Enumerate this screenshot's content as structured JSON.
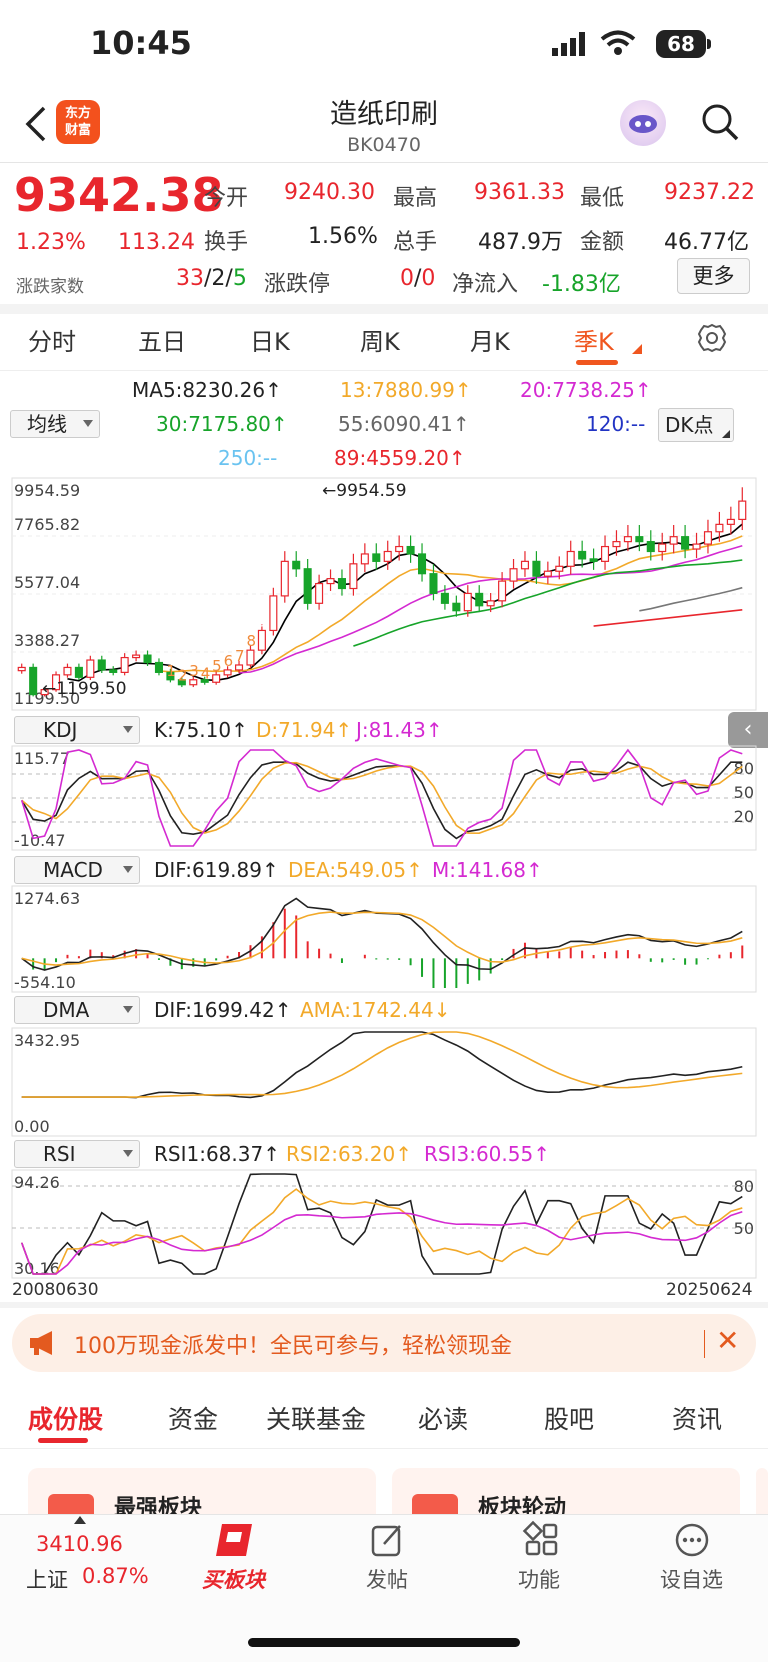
{
  "status": {
    "time": "10:45",
    "battery": "68"
  },
  "header": {
    "logo_text": "东方\n财富",
    "title": "造纸印刷",
    "code": "BK0470"
  },
  "quote": {
    "price": "9342.38",
    "change_pct": "1.23%",
    "change": "113.24",
    "open_label": "今开",
    "open": "9240.30",
    "high_label": "最高",
    "high": "9361.33",
    "low_label": "最低",
    "low": "9237.22",
    "turnover_label": "换手",
    "turnover": "1.56%",
    "volume_label": "总手",
    "volume": "487.9万",
    "amount_label": "金额",
    "amount": "46.77亿",
    "breadth_label": "涨跌家数",
    "breadth_up": "33",
    "breadth_sep1": "/",
    "breadth_flat": "2",
    "breadth_sep2": "/",
    "breadth_down": "5",
    "limit_label": "涨跌停",
    "limit_up": "0",
    "limit_sep": "/",
    "limit_down": "0",
    "netflow_label": "净流入",
    "netflow": "-1.83亿",
    "more": "更多"
  },
  "period_tabs": [
    "分时",
    "五日",
    "日K",
    "周K",
    "月K",
    "季K"
  ],
  "ma": {
    "select": "均线",
    "ma5": "MA5:8230.26↑",
    "ma13": "13:7880.99↑",
    "ma20": "20:7738.25↑",
    "ma30": "30:7175.80↑",
    "ma55": "55:6090.41↑",
    "ma120": "120:--",
    "ma250": "250:--",
    "ma89": "89:4559.20↑",
    "dk": "DK点"
  },
  "chart_data": {
    "type": "candlestick",
    "period": "quarterly",
    "x_start": "20080630",
    "x_end": "20250624",
    "y_ticks": [
      "9954.59",
      "7765.82",
      "5577.04",
      "3388.27",
      "1199.50"
    ],
    "ylim": [
      1199.5,
      9954.59
    ],
    "max_label": "9954.59",
    "min_label": "1199.50",
    "seq_labels": [
      "1",
      "2",
      "3",
      "4",
      "5",
      "6",
      "7",
      "8",
      "9"
    ],
    "close": [
      2600,
      1500,
      1700,
      2300,
      2600,
      2200,
      2900,
      2500,
      2400,
      3000,
      3100,
      2800,
      2400,
      2100,
      1900,
      2100,
      2000,
      2300,
      2500,
      2700,
      3300,
      4100,
      5500,
      6900,
      6600,
      5200,
      6000,
      6200,
      5800,
      6800,
      7200,
      6900,
      7300,
      7500,
      7200,
      6400,
      5600,
      5200,
      4900,
      5600,
      5100,
      5300,
      6100,
      6600,
      6900,
      6300,
      6500,
      6700,
      7300,
      7000,
      6900,
      7500,
      7700,
      7900,
      7700,
      7300,
      7600,
      7900,
      7400,
      7600,
      8100,
      8400,
      8600,
      9342
    ],
    "kdj": {
      "labels": [
        "K:75.10↑",
        "D:71.94↑",
        "J:81.43↑"
      ],
      "y_ticks": [
        "115.77",
        "-10.47"
      ],
      "levels": [
        "80",
        "50",
        "20"
      ]
    },
    "macd": {
      "labels": [
        "DIF:619.89↑",
        "DEA:549.05↑",
        "M:141.68↑"
      ],
      "y_ticks": [
        "1274.63",
        "-554.10"
      ]
    },
    "dma": {
      "labels": [
        "DIF:1699.42↑",
        "AMA:1742.44↓"
      ],
      "y_ticks": [
        "3432.95",
        "0.00"
      ]
    },
    "rsi": {
      "labels": [
        "RSI1:68.37↑",
        "RSI2:63.20↑",
        "RSI3:60.55↑"
      ],
      "y_ticks": [
        "94.26",
        "30.16"
      ],
      "levels": [
        "80",
        "50"
      ]
    }
  },
  "indicators": {
    "kdj": "KDJ",
    "macd": "MACD",
    "dma": "DMA",
    "rsi": "RSI"
  },
  "promo": {
    "text": "100万现金派发中！全民可参与，轻松领现金",
    "close": "✕"
  },
  "content_tabs": [
    "成份股",
    "资金",
    "关联基金",
    "必读",
    "股吧",
    "资讯"
  ],
  "cards": [
    {
      "title": "最强板块"
    },
    {
      "title": "板块轮动"
    }
  ],
  "bottom_nav": {
    "index_value": "3410.96",
    "index_name": "上证",
    "index_change": "0.87%",
    "buy_label": "买板块",
    "post_label": "发帖",
    "func_label": "功能",
    "watch_label": "设自选"
  },
  "colors": {
    "up": "#e8262d",
    "down": "#17a42a",
    "accent": "#f0561f",
    "ma5": "#000000",
    "ma13": "#f2a92a",
    "ma20": "#d42ad1",
    "ma30": "#17a42a",
    "ma55": "#777777",
    "ma89": "#e8262d"
  }
}
